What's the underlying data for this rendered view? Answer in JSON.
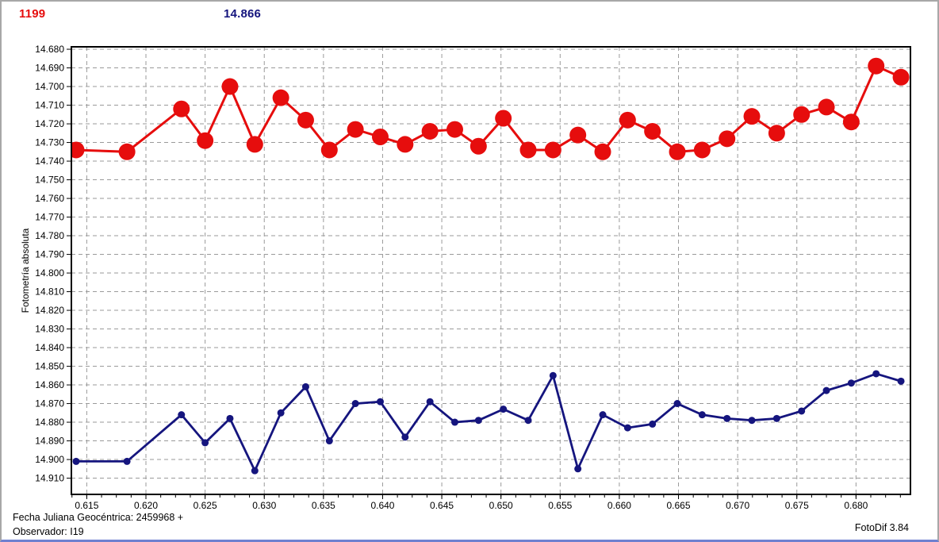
{
  "header": {
    "object_id": "1199",
    "mean_magnitude": "14.866"
  },
  "footer": {
    "julian_date_label": "Fecha Juliana Geocéntrica: 2459968 +",
    "observer_label": "Observador: I19",
    "software_label": "FotoDif 3.84"
  },
  "colors": {
    "red_series": "#e60d0d",
    "blue_series": "#15157e",
    "grid": "#9a9a9a",
    "frame": "#000000"
  },
  "chart_data": {
    "type": "line",
    "title": "",
    "xlabel": "",
    "ylabel": "Fotometría absoluta",
    "y_inverted": true,
    "grid": "both-dashed",
    "grid_color": "#9a9a9a",
    "xlim": [
      0.6137,
      0.6846
    ],
    "ylim": [
      14.6787,
      14.9187
    ],
    "x_ticks": [
      0.615,
      0.62,
      0.625,
      0.63,
      0.635,
      0.64,
      0.645,
      0.65,
      0.655,
      0.66,
      0.665,
      0.67,
      0.675,
      0.68
    ],
    "x_minor_step": 0.00125,
    "y_ticks": [
      14.68,
      14.69,
      14.7,
      14.71,
      14.72,
      14.73,
      14.74,
      14.75,
      14.76,
      14.77,
      14.78,
      14.79,
      14.8,
      14.81,
      14.82,
      14.83,
      14.84,
      14.85,
      14.86,
      14.87,
      14.88,
      14.89,
      14.9,
      14.91
    ],
    "x": [
      0.6141,
      0.6184,
      0.623,
      0.625,
      0.6271,
      0.6292,
      0.6314,
      0.6335,
      0.6355,
      0.6377,
      0.6398,
      0.6419,
      0.644,
      0.6461,
      0.6481,
      0.6502,
      0.6523,
      0.6544,
      0.6565,
      0.6586,
      0.6607,
      0.6628,
      0.6649,
      0.667,
      0.6691,
      0.6712,
      0.6733,
      0.6754,
      0.6775,
      0.6796,
      0.6817,
      0.6838
    ],
    "series": [
      {
        "name": "red-photometry",
        "color": "#e60d0d",
        "marker_radius": 10.5,
        "line_width": 3,
        "values": [
          14.734,
          14.735,
          14.712,
          14.729,
          14.7,
          14.731,
          14.706,
          14.718,
          14.734,
          14.723,
          14.727,
          14.731,
          14.724,
          14.723,
          14.732,
          14.717,
          14.734,
          14.734,
          14.726,
          14.735,
          14.718,
          14.724,
          14.735,
          14.734,
          14.728,
          14.716,
          14.725,
          14.715,
          14.711,
          14.719,
          14.689,
          14.695
        ]
      },
      {
        "name": "blue-photometry",
        "color": "#15157e",
        "marker_radius": 4.5,
        "line_width": 2.8,
        "values": [
          14.901,
          14.901,
          14.876,
          14.891,
          14.878,
          14.906,
          14.875,
          14.861,
          14.89,
          14.87,
          14.869,
          14.888,
          14.869,
          14.88,
          14.879,
          14.873,
          14.879,
          14.855,
          14.905,
          14.876,
          14.883,
          14.881,
          14.87,
          14.876,
          14.878,
          14.879,
          14.878,
          14.874,
          14.863,
          14.859,
          14.854,
          14.858
        ]
      }
    ]
  }
}
